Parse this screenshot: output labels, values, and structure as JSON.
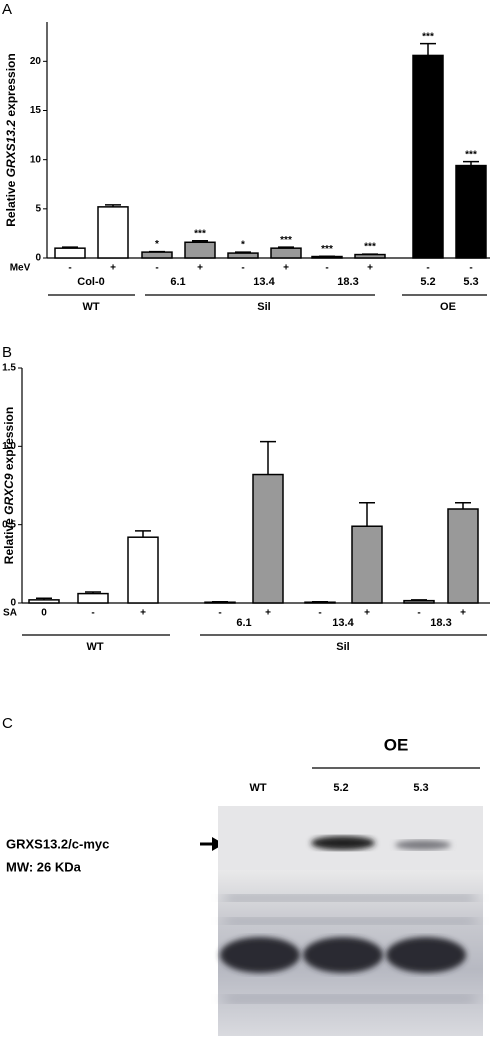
{
  "chart_data": [
    {
      "type": "bar",
      "label": "A",
      "y_label": {
        "pre": "Relative",
        "gene": "GRXS13.2",
        "post": "expression"
      },
      "row_label": "MeV",
      "categories": [
        "-",
        "+",
        "-",
        "+",
        "-",
        "+",
        "-",
        "+",
        "-",
        "-"
      ],
      "values": [
        1.0,
        5.2,
        0.6,
        1.6,
        0.5,
        1.0,
        0.15,
        0.35,
        20.6,
        9.4
      ],
      "errors": [
        0.1,
        0.2,
        0.05,
        0.15,
        0.1,
        0.1,
        0.03,
        0.05,
        1.2,
        0.4
      ],
      "significance": [
        null,
        null,
        "*",
        "***",
        "*",
        "***",
        "***",
        "***",
        "***",
        "***"
      ],
      "colors": [
        "#ffffff",
        "#ffffff",
        "#999999",
        "#999999",
        "#999999",
        "#999999",
        "#999999",
        "#999999",
        "#000000",
        "#000000"
      ],
      "subgroups": [
        "Col-0",
        "6.1",
        "13.4",
        "18.3",
        "5.2",
        "5.3"
      ],
      "groups": [
        "WT",
        "Sil",
        "OE"
      ],
      "ylim": [
        0,
        24
      ],
      "yticks": [
        0,
        5,
        10,
        15,
        20
      ]
    },
    {
      "type": "bar",
      "label": "B",
      "y_label": {
        "pre": "Relative",
        "gene": "GRXC9",
        "post": "expression"
      },
      "row_label": "SA",
      "categories": [
        "0",
        "-",
        "+",
        "-",
        "+",
        "-",
        "+",
        "-",
        "+"
      ],
      "values": [
        0.02,
        0.06,
        0.42,
        0.005,
        0.82,
        0.005,
        0.49,
        0.015,
        0.6
      ],
      "errors": [
        0.01,
        0.01,
        0.04,
        0.003,
        0.21,
        0.003,
        0.15,
        0.005,
        0.04
      ],
      "colors": [
        "#ffffff",
        "#ffffff",
        "#ffffff",
        "#999999",
        "#999999",
        "#999999",
        "#999999",
        "#999999",
        "#999999"
      ],
      "subgroups": [
        "6.1",
        "13.4",
        "18.3"
      ],
      "groups": [
        "WT",
        "Sil"
      ],
      "ylim": [
        0,
        1.5
      ],
      "yticks": [
        0,
        0.5,
        {
          "value": 1,
          "label": "1.0"
        },
        1.5
      ]
    }
  ],
  "panel_c": {
    "label": "C",
    "group": "OE",
    "lanes": [
      "WT",
      "5.2",
      "5.3"
    ],
    "band_label": "GRXS13.2/c-myc",
    "mw": "MW: 26 KDa"
  }
}
